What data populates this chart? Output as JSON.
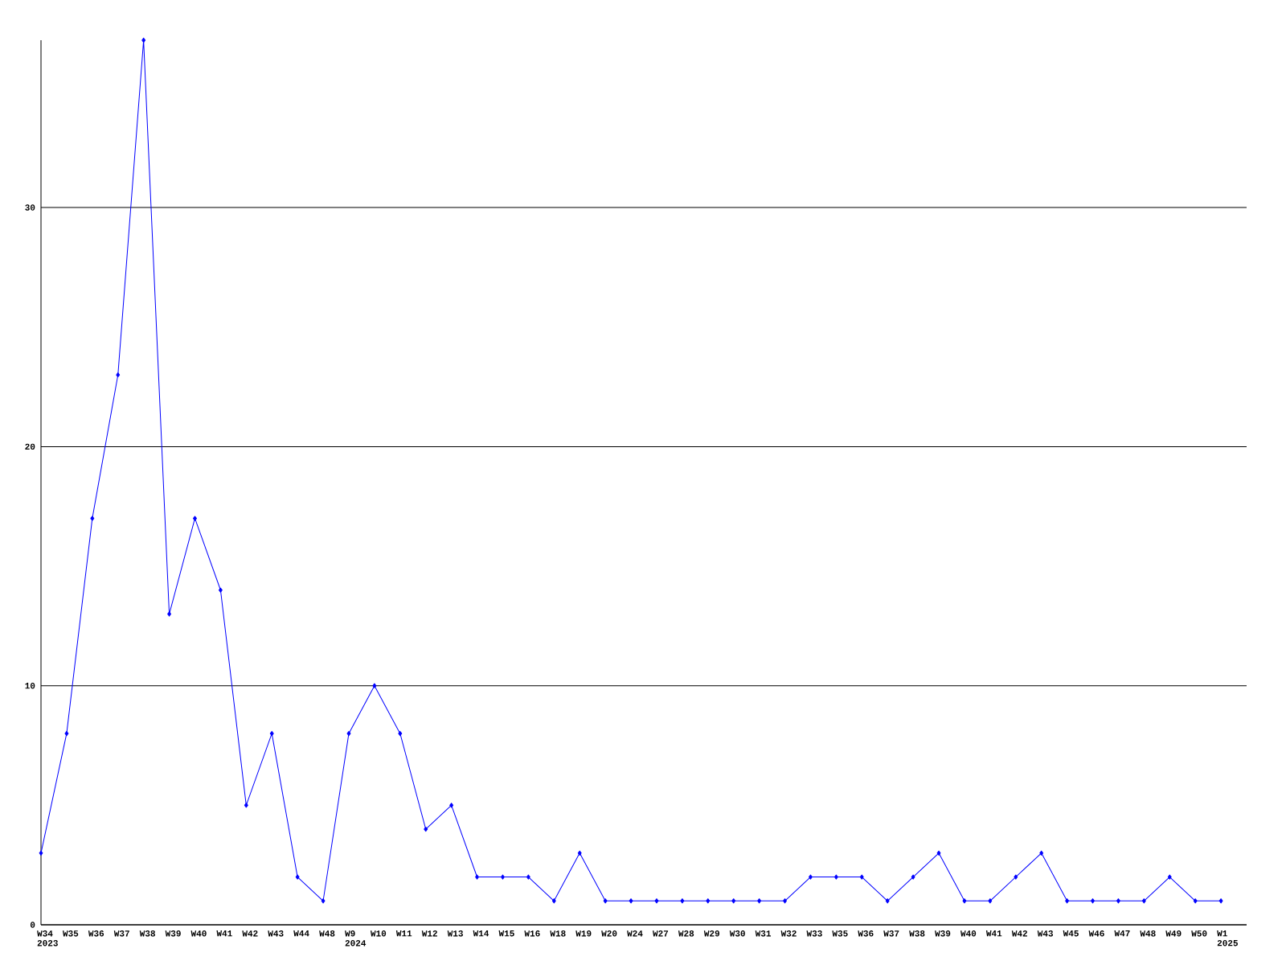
{
  "chart_data": {
    "type": "line",
    "categories": [
      "W34 2023",
      "W35",
      "W36",
      "W37",
      "W38",
      "W39",
      "W40",
      "W41",
      "W42",
      "W43",
      "W44",
      "W48",
      "W9 2024",
      "W10",
      "W11",
      "W12",
      "W13",
      "W14",
      "W15",
      "W16",
      "W18",
      "W19",
      "W20",
      "W24",
      "W27",
      "W28",
      "W29",
      "W30",
      "W31",
      "W32",
      "W33",
      "W35",
      "W36",
      "W37",
      "W38",
      "W39",
      "W40",
      "W41",
      "W42",
      "W43",
      "W45",
      "W46",
      "W47",
      "W48",
      "W49",
      "W50",
      "W1 2025"
    ],
    "series": [
      {
        "color": "#0000ff",
        "values": [
          3,
          8,
          17,
          23,
          37,
          13,
          17,
          14,
          5,
          8,
          2,
          1,
          8,
          10,
          8,
          4,
          5,
          2,
          2,
          2,
          1,
          3,
          1,
          1,
          1,
          1,
          1,
          1,
          1,
          1,
          2,
          2,
          2,
          1,
          2,
          3,
          1,
          1,
          2,
          3,
          1,
          1,
          1,
          1,
          2,
          1,
          1
        ]
      }
    ],
    "ylim": [
      0,
      37
    ],
    "yticks": [
      0,
      10,
      20,
      30
    ],
    "grid": "y",
    "marker": "diamond",
    "line_style": "solid"
  }
}
